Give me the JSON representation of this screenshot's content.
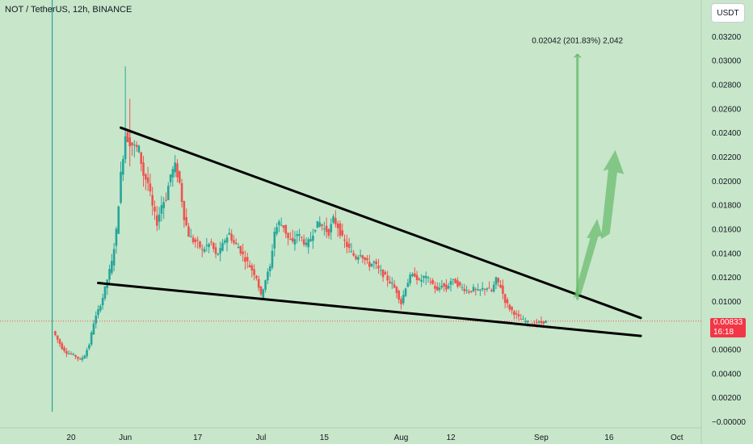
{
  "header": {
    "title": "NOT / TetherUS, 12h, BINANCE"
  },
  "currency_button": {
    "label": "USDT"
  },
  "price_badge": {
    "price": "0.00833",
    "countdown": "16:18"
  },
  "target_annotation": {
    "text": "0.02042 (201.83%) 2,042"
  },
  "colors": {
    "background": "#c8e6c9",
    "up": "#26a69a",
    "down": "#ef5350",
    "price_line": "#ef5350",
    "annotation_green": "#66bb6a"
  },
  "chart_data": {
    "type": "candlestick",
    "ylim": [
      0,
      0.033
    ],
    "yticks": [
      0.0,
      0.002,
      0.004,
      0.006,
      0.008,
      0.01,
      0.012,
      0.014,
      0.016,
      0.018,
      0.02,
      0.022,
      0.024,
      0.026,
      0.028,
      0.03,
      0.032
    ],
    "ytick_labels": [
      "−0.00000",
      "0.00200",
      "0.00400",
      "0.00600",
      "0.00800",
      "0.01000",
      "0.01200",
      "0.01400",
      "0.01600",
      "0.01800",
      "0.02000",
      "0.02200",
      "0.02400",
      "0.02600",
      "0.02800",
      "0.03000",
      "0.03200"
    ],
    "xtick_labels": [
      "20",
      "Jun",
      "17",
      "Jul",
      "15",
      "Aug",
      "12",
      "Sep",
      "16",
      "Oct"
    ],
    "x_range": [
      "2024-05-15",
      "2024-10-03"
    ],
    "xticks": [
      "2024-05-20",
      "2024-06-01",
      "2024-06-17",
      "2024-07-01",
      "2024-07-15",
      "2024-08-01",
      "2024-08-12",
      "2024-09-01",
      "2024-09-16",
      "2024-10-01"
    ],
    "last_price": 0.00833,
    "price_path": [
      [
        "2024-05-16",
        0.0075
      ],
      [
        "2024-05-17",
        0.0068
      ],
      [
        "2024-05-18",
        0.0061
      ],
      [
        "2024-05-19",
        0.0057
      ],
      [
        "2024-05-20",
        0.0056
      ],
      [
        "2024-05-21",
        0.0054
      ],
      [
        "2024-05-22",
        0.0051
      ],
      [
        "2024-05-23",
        0.0055
      ],
      [
        "2024-05-24",
        0.0064
      ],
      [
        "2024-05-25",
        0.0082
      ],
      [
        "2024-05-26",
        0.0092
      ],
      [
        "2024-05-27",
        0.0103
      ],
      [
        "2024-05-28",
        0.0118
      ],
      [
        "2024-05-29",
        0.0132
      ],
      [
        "2024-05-30",
        0.0158
      ],
      [
        "2024-05-31",
        0.0205
      ],
      [
        "2024-06-01",
        0.0238
      ],
      [
        "2024-06-02",
        0.0232
      ],
      [
        "2024-06-03",
        0.0228
      ],
      [
        "2024-06-04",
        0.0226
      ],
      [
        "2024-06-05",
        0.0205
      ],
      [
        "2024-06-06",
        0.0198
      ],
      [
        "2024-06-07",
        0.0178
      ],
      [
        "2024-06-08",
        0.0165
      ],
      [
        "2024-06-09",
        0.018
      ],
      [
        "2024-06-10",
        0.0186
      ],
      [
        "2024-06-11",
        0.0205
      ],
      [
        "2024-06-12",
        0.0212
      ],
      [
        "2024-06-13",
        0.0198
      ],
      [
        "2024-06-14",
        0.017
      ],
      [
        "2024-06-15",
        0.0155
      ],
      [
        "2024-06-16",
        0.015
      ],
      [
        "2024-06-17",
        0.0148
      ],
      [
        "2024-06-18",
        0.0142
      ],
      [
        "2024-06-19",
        0.0146
      ],
      [
        "2024-06-20",
        0.0148
      ],
      [
        "2024-06-21",
        0.0138
      ],
      [
        "2024-06-22",
        0.0142
      ],
      [
        "2024-06-23",
        0.0151
      ],
      [
        "2024-06-24",
        0.0156
      ],
      [
        "2024-06-25",
        0.0148
      ],
      [
        "2024-06-26",
        0.0145
      ],
      [
        "2024-06-27",
        0.0138
      ],
      [
        "2024-06-28",
        0.0132
      ],
      [
        "2024-06-29",
        0.0126
      ],
      [
        "2024-06-30",
        0.012
      ],
      [
        "2024-07-01",
        0.0104
      ],
      [
        "2024-07-02",
        0.0118
      ],
      [
        "2024-07-03",
        0.0128
      ],
      [
        "2024-07-04",
        0.0158
      ],
      [
        "2024-07-05",
        0.0165
      ],
      [
        "2024-07-06",
        0.0162
      ],
      [
        "2024-07-07",
        0.0152
      ],
      [
        "2024-07-08",
        0.0148
      ],
      [
        "2024-07-09",
        0.0156
      ],
      [
        "2024-07-10",
        0.0152
      ],
      [
        "2024-07-11",
        0.0146
      ],
      [
        "2024-07-12",
        0.0152
      ],
      [
        "2024-07-13",
        0.0162
      ],
      [
        "2024-07-14",
        0.0165
      ],
      [
        "2024-07-15",
        0.016
      ],
      [
        "2024-07-16",
        0.0157
      ],
      [
        "2024-07-17",
        0.0168
      ],
      [
        "2024-07-18",
        0.0162
      ],
      [
        "2024-07-19",
        0.0152
      ],
      [
        "2024-07-20",
        0.0146
      ],
      [
        "2024-07-21",
        0.014
      ],
      [
        "2024-07-22",
        0.0136
      ],
      [
        "2024-07-23",
        0.014
      ],
      [
        "2024-07-24",
        0.0134
      ],
      [
        "2024-07-25",
        0.013
      ],
      [
        "2024-07-26",
        0.0132
      ],
      [
        "2024-07-27",
        0.0126
      ],
      [
        "2024-07-28",
        0.0122
      ],
      [
        "2024-07-29",
        0.0118
      ],
      [
        "2024-07-30",
        0.0114
      ],
      [
        "2024-07-31",
        0.0108
      ],
      [
        "2024-08-01",
        0.0098
      ],
      [
        "2024-08-02",
        0.0112
      ],
      [
        "2024-08-03",
        0.012
      ],
      [
        "2024-08-04",
        0.0122
      ],
      [
        "2024-08-05",
        0.0116
      ],
      [
        "2024-08-06",
        0.012
      ],
      [
        "2024-08-07",
        0.0118
      ],
      [
        "2024-08-08",
        0.0114
      ],
      [
        "2024-08-09",
        0.0108
      ],
      [
        "2024-08-10",
        0.0114
      ],
      [
        "2024-08-11",
        0.011
      ],
      [
        "2024-08-12",
        0.0117
      ],
      [
        "2024-08-13",
        0.0116
      ],
      [
        "2024-08-14",
        0.0112
      ],
      [
        "2024-08-15",
        0.011
      ],
      [
        "2024-08-16",
        0.0108
      ],
      [
        "2024-08-17",
        0.011
      ],
      [
        "2024-08-18",
        0.0108
      ],
      [
        "2024-08-19",
        0.011
      ],
      [
        "2024-08-20",
        0.0111
      ],
      [
        "2024-08-21",
        0.0108
      ],
      [
        "2024-08-22",
        0.0118
      ],
      [
        "2024-08-23",
        0.0112
      ],
      [
        "2024-08-24",
        0.01
      ],
      [
        "2024-08-25",
        0.0094
      ],
      [
        "2024-08-26",
        0.009
      ],
      [
        "2024-08-27",
        0.0086
      ],
      [
        "2024-08-28",
        0.0084
      ],
      [
        "2024-08-29",
        0.0082
      ],
      [
        "2024-08-30",
        0.008
      ],
      [
        "2024-08-31",
        0.0082
      ],
      [
        "2024-09-01",
        0.0082
      ],
      [
        "2024-09-02",
        0.0083
      ]
    ],
    "trendlines": [
      {
        "start": [
          "2024-05-31",
          0.0244
        ],
        "end": [
          "2024-09-23",
          0.0086
        ]
      },
      {
        "start": [
          "2024-05-26",
          0.0115
        ],
        "end": [
          "2024-09-23",
          0.0071
        ]
      }
    ],
    "target_arrow": {
      "date": "2024-09-09",
      "from": 0.0101,
      "to": 0.0305
    },
    "projected_path": [
      [
        "2024-09-09",
        0.0103
      ],
      [
        "2024-09-13",
        0.0158
      ],
      [
        "2024-09-15",
        0.0152
      ],
      [
        "2024-09-17",
        0.0222
      ]
    ]
  }
}
